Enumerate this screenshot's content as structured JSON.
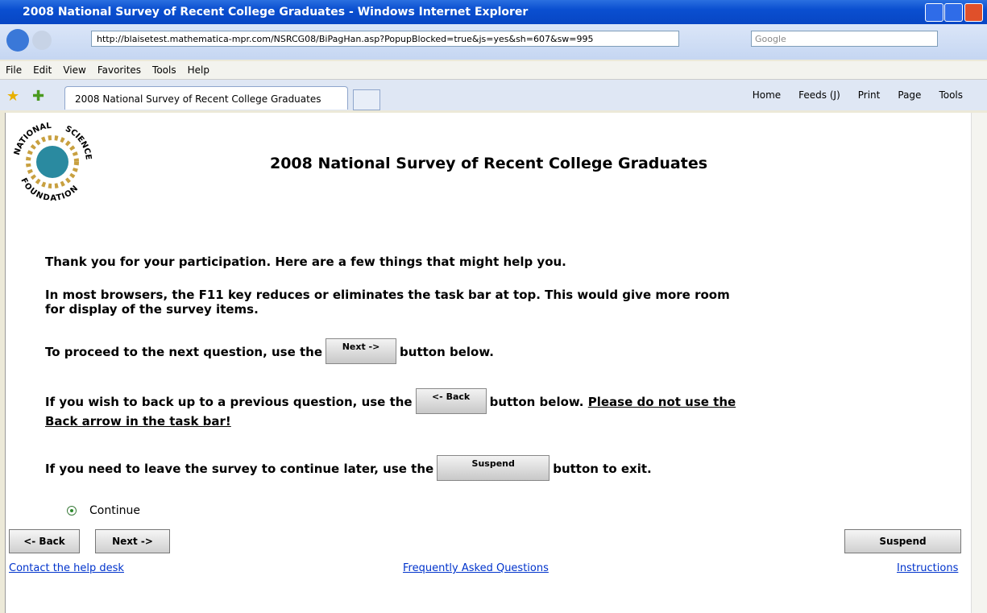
{
  "window": {
    "title": "2008 National Survey of Recent College Graduates - Windows Internet Explorer"
  },
  "address_bar": {
    "url": "http://blaisetest.mathematica-mpr.com/NSRCG08/BiPagHan.asp?PopupBlocked=true&js=yes&sh=607&sw=995",
    "search": "Google"
  },
  "menu": [
    "File",
    "Edit",
    "View",
    "Favorites",
    "Tools",
    "Help"
  ],
  "tab": "2008 National Survey of Recent College Graduates",
  "toolbar": [
    "Home",
    "Feeds (J)",
    "Print",
    "Page",
    "Tools"
  ],
  "logo": [
    "NATIONAL",
    "SCIENCE",
    "FOUNDATION"
  ],
  "header": {
    "title": "2008 National Survey of Recent College Graduates"
  },
  "intro": [
    "Thank you for your participation. Here are a few things that might help you.",
    "In most browsers, the F11 key reduces or eliminates the task bar at top. This would give more room for display of the survey items."
  ],
  "tips": [
    {
      "before": "To proceed to the next question, use the",
      "button": "Next ->",
      "after": "button below."
    },
    {
      "before": "If you wish to back up to a previous question, use the",
      "button": "<- Back",
      "after": "button below.",
      "warning": "Please do not use the Back arrow in the task bar!"
    },
    {
      "before": "If you need to leave the survey to continue later, use the",
      "button": "Suspend",
      "after": "button to exit."
    }
  ],
  "option": "Continue",
  "nav": {
    "back": "<- Back",
    "next": "Next ->",
    "suspend": "Suspend"
  },
  "links": [
    "Contact the help desk",
    "Frequently Asked Questions",
    "Instructions"
  ]
}
